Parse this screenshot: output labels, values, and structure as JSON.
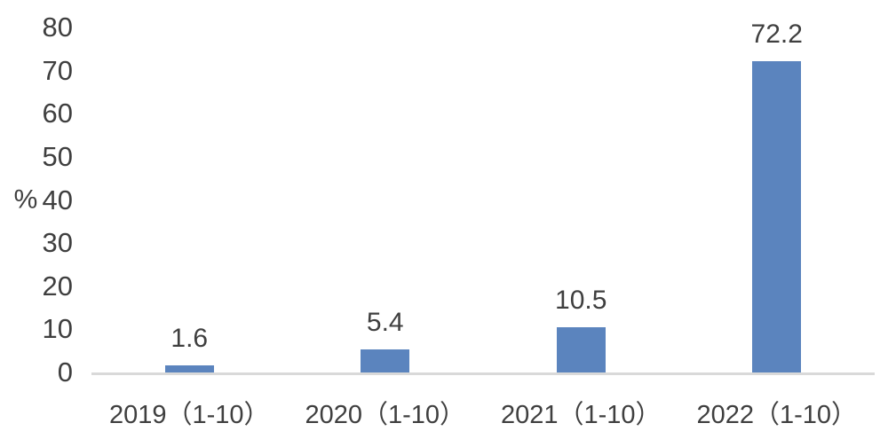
{
  "chart_data": {
    "type": "bar",
    "title": "",
    "categories": [
      "2019（1-10）",
      "2020（1-10）",
      "2021（1-10）",
      "2022（1-10）"
    ],
    "values": [
      1.6,
      5.4,
      10.5,
      72.2
    ],
    "value_labels": [
      "1.6",
      "5.4",
      "10.5",
      "72.2"
    ],
    "xlabel": "",
    "ylabel": "%",
    "yticks": [
      0,
      10,
      20,
      30,
      40,
      50,
      60,
      70,
      80
    ],
    "ylim": [
      0,
      80
    ],
    "grid": false,
    "legend": "none",
    "colors": {
      "bar": "#5b84be",
      "text": "#3f3f3f",
      "axis_line": "#d9d9d9",
      "background": "#ffffff"
    }
  }
}
